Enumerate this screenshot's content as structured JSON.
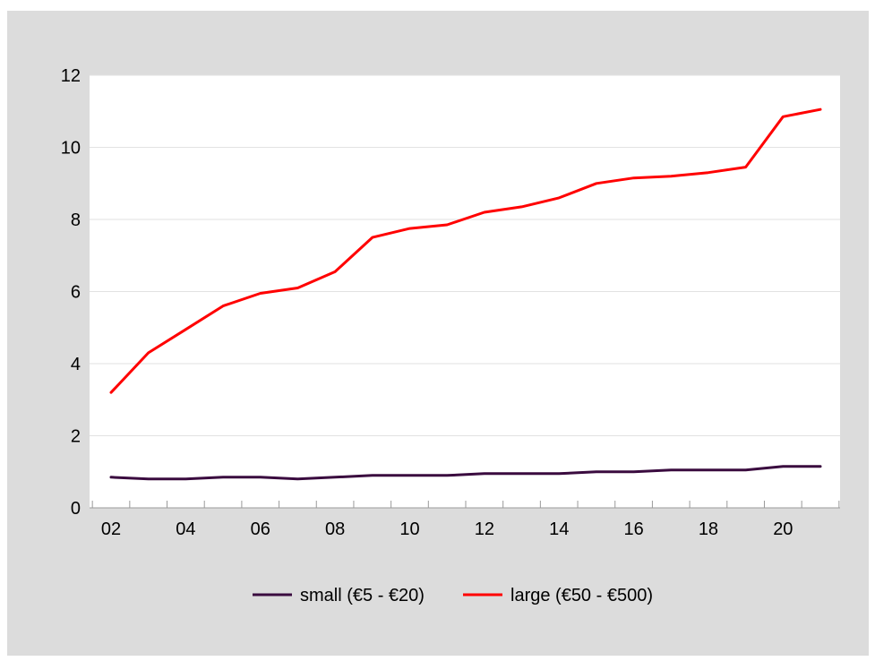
{
  "chart_data": {
    "type": "line",
    "title": "",
    "xlabel": "",
    "ylabel": "",
    "x": [
      "02",
      "03",
      "04",
      "05",
      "06",
      "07",
      "08",
      "09",
      "10",
      "11",
      "12",
      "13",
      "14",
      "15",
      "16",
      "17",
      "18",
      "19",
      "20",
      "21"
    ],
    "x_tick_labels": [
      "02",
      "04",
      "06",
      "08",
      "10",
      "12",
      "14",
      "16",
      "18",
      "20"
    ],
    "y_tick_labels": [
      "0",
      "2",
      "4",
      "6",
      "8",
      "10",
      "12"
    ],
    "ylim": [
      0,
      12
    ],
    "grid": "horizontal",
    "legend_position": "bottom",
    "series": [
      {
        "name": "small (€5 - €20)",
        "color": "#3a0b3f",
        "values": [
          0.85,
          0.8,
          0.8,
          0.85,
          0.85,
          0.8,
          0.85,
          0.9,
          0.9,
          0.9,
          0.95,
          0.95,
          0.95,
          1.0,
          1.0,
          1.05,
          1.05,
          1.05,
          1.15,
          1.15
        ]
      },
      {
        "name": "large (€50 - €500)",
        "color": "#ff0000",
        "values": [
          3.2,
          4.3,
          4.95,
          5.6,
          5.95,
          6.1,
          6.55,
          7.5,
          7.75,
          7.85,
          8.2,
          8.35,
          8.6,
          9.0,
          9.15,
          9.2,
          9.3,
          9.45,
          10.85,
          11.05
        ]
      }
    ]
  }
}
